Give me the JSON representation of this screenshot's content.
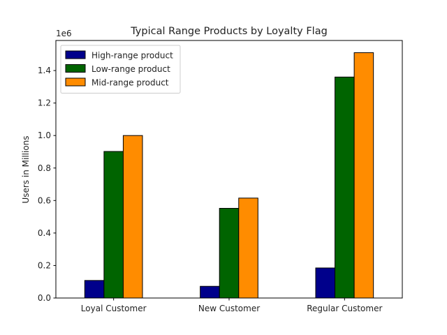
{
  "chart_data": {
    "type": "bar",
    "title": "Typical Range Products by Loyalty Flag",
    "xlabel": "",
    "ylabel": "Users in Millions",
    "y_offset_label": "1e6",
    "categories": [
      "Loyal Customer",
      "New Customer",
      "Regular Customer"
    ],
    "series": [
      {
        "name": "High-range product",
        "color": "#00008b",
        "values": [
          108000,
          72000,
          185000
        ]
      },
      {
        "name": "Low-range product",
        "color": "#006400",
        "values": [
          902000,
          552000,
          1360000
        ]
      },
      {
        "name": "Mid-range product",
        "color": "#ff8c00",
        "values": [
          1000000,
          615000,
          1510000
        ]
      }
    ],
    "ylim": [
      0,
      1585000
    ],
    "yticks": [
      0,
      200000,
      400000,
      600000,
      800000,
      1000000,
      1200000,
      1400000
    ],
    "ytick_labels": [
      "0.0",
      "0.2",
      "0.4",
      "0.6",
      "0.8",
      "1.0",
      "1.2",
      "1.4"
    ],
    "grid": false,
    "legend_position": "top-left"
  }
}
